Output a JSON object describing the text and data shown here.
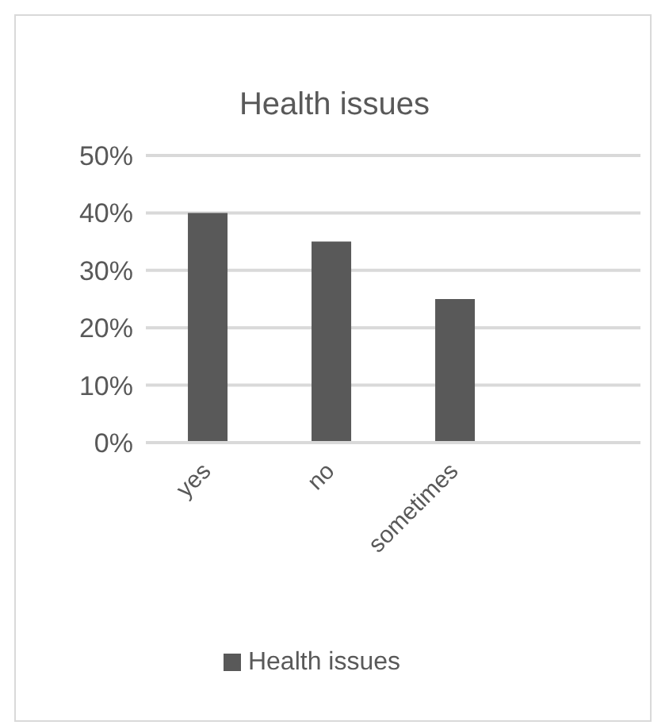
{
  "chart_data": {
    "type": "bar",
    "title": "Health issues",
    "categories": [
      "yes",
      "no",
      "sometimes",
      null
    ],
    "series": [
      {
        "name": "Health issues",
        "color": "#595959",
        "values": [
          40,
          35,
          25,
          null
        ]
      }
    ],
    "ylim": [
      0,
      50
    ],
    "yticks": [
      {
        "value": 0,
        "label": "0%"
      },
      {
        "value": 10,
        "label": "10%"
      },
      {
        "value": 20,
        "label": "20%"
      },
      {
        "value": 30,
        "label": "30%"
      },
      {
        "value": 40,
        "label": "40%"
      },
      {
        "value": 50,
        "label": "50%"
      }
    ],
    "grid": "y",
    "legend": "bottom"
  }
}
